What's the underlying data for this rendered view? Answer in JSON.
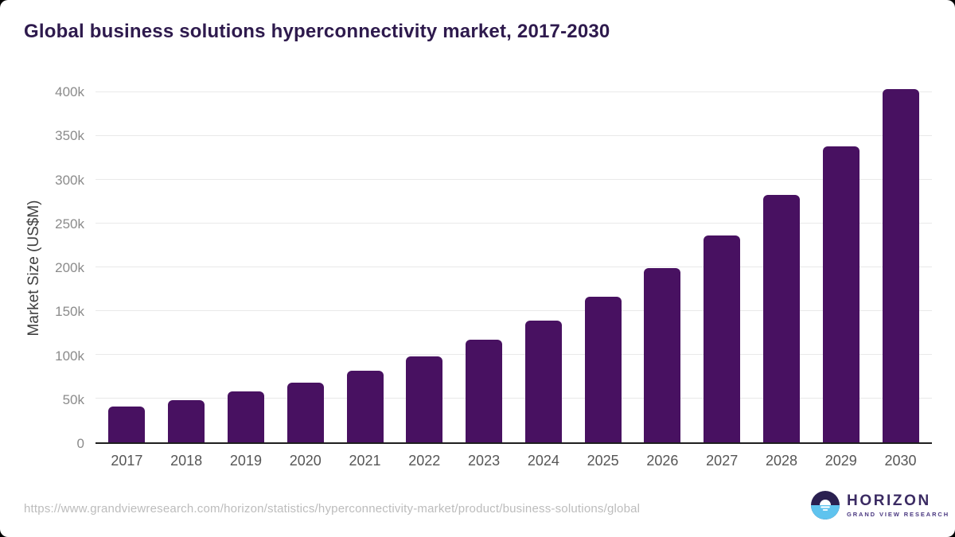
{
  "chart": {
    "title": "Global business solutions hyperconnectivity market, 2017-2030",
    "y_axis_label": "Market Size (US$M)"
  },
  "chart_data": {
    "type": "bar",
    "title": "Global business solutions hyperconnectivity market, 2017-2030",
    "xlabel": "",
    "ylabel": "Market Size (US$M)",
    "unit": "US$M",
    "categories": [
      "2017",
      "2018",
      "2019",
      "2020",
      "2021",
      "2022",
      "2023",
      "2024",
      "2025",
      "2026",
      "2027",
      "2028",
      "2029",
      "2030"
    ],
    "values": [
      40700,
      48500,
      57900,
      68400,
      81500,
      97900,
      117200,
      138900,
      166500,
      199500,
      236200,
      282400,
      338600,
      404000
    ],
    "ylim": [
      0,
      400000
    ],
    "ytick_labels": [
      "0",
      "50k",
      "100k",
      "150k",
      "200k",
      "250k",
      "300k",
      "350k",
      "400k"
    ],
    "grid": "horizontal",
    "legend": "none",
    "bar_color": "#481161",
    "gridline_color": "#e9e9e9",
    "axis_line_color": "#1f1f1f"
  },
  "footer": {
    "source_url": "https://www.grandviewresearch.com/horizon/statistics/hyperconnectivity-market/product/business-solutions/global",
    "logo": {
      "name": "HORIZON",
      "subtitle": "GRAND VIEW RESEARCH",
      "dark_color": "#2a2050",
      "blue_color": "#5fc3ee"
    }
  },
  "colors": {
    "title": "#2e1a4d",
    "background": "#ffffff"
  }
}
